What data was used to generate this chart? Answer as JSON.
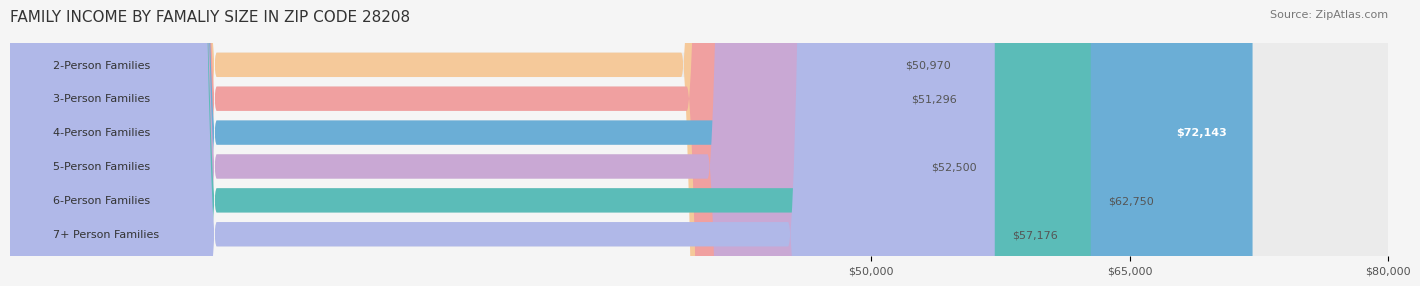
{
  "title": "FAMILY INCOME BY FAMALIY SIZE IN ZIP CODE 28208",
  "source": "Source: ZipAtlas.com",
  "categories": [
    "2-Person Families",
    "3-Person Families",
    "4-Person Families",
    "5-Person Families",
    "6-Person Families",
    "7+ Person Families"
  ],
  "values": [
    50970,
    51296,
    72143,
    52500,
    62750,
    57176
  ],
  "bar_colors": [
    "#f5c99a",
    "#f0a0a0",
    "#6baed6",
    "#c9a8d4",
    "#5bbcb8",
    "#b0b8e8"
  ],
  "bar_edge_colors": [
    "#e8a86e",
    "#e07070",
    "#4a90c4",
    "#a880c0",
    "#3da09c",
    "#8890d0"
  ],
  "value_labels": [
    "$50,970",
    "$51,296",
    "$72,143",
    "$52,500",
    "$62,750",
    "$57,176"
  ],
  "label_colors": [
    "#555555",
    "#555555",
    "#ffffff",
    "#555555",
    "#555555",
    "#555555"
  ],
  "xmin": 0,
  "xmax": 80000,
  "xticks": [
    50000,
    65000,
    80000
  ],
  "xtick_labels": [
    "$50,000",
    "$65,000",
    "$80,000"
  ],
  "background_color": "#f5f5f5",
  "bar_bg_color": "#ebebeb",
  "title_fontsize": 11,
  "source_fontsize": 8,
  "label_fontsize": 8,
  "tick_fontsize": 8,
  "bar_height": 0.72,
  "bar_gap": 0.28
}
